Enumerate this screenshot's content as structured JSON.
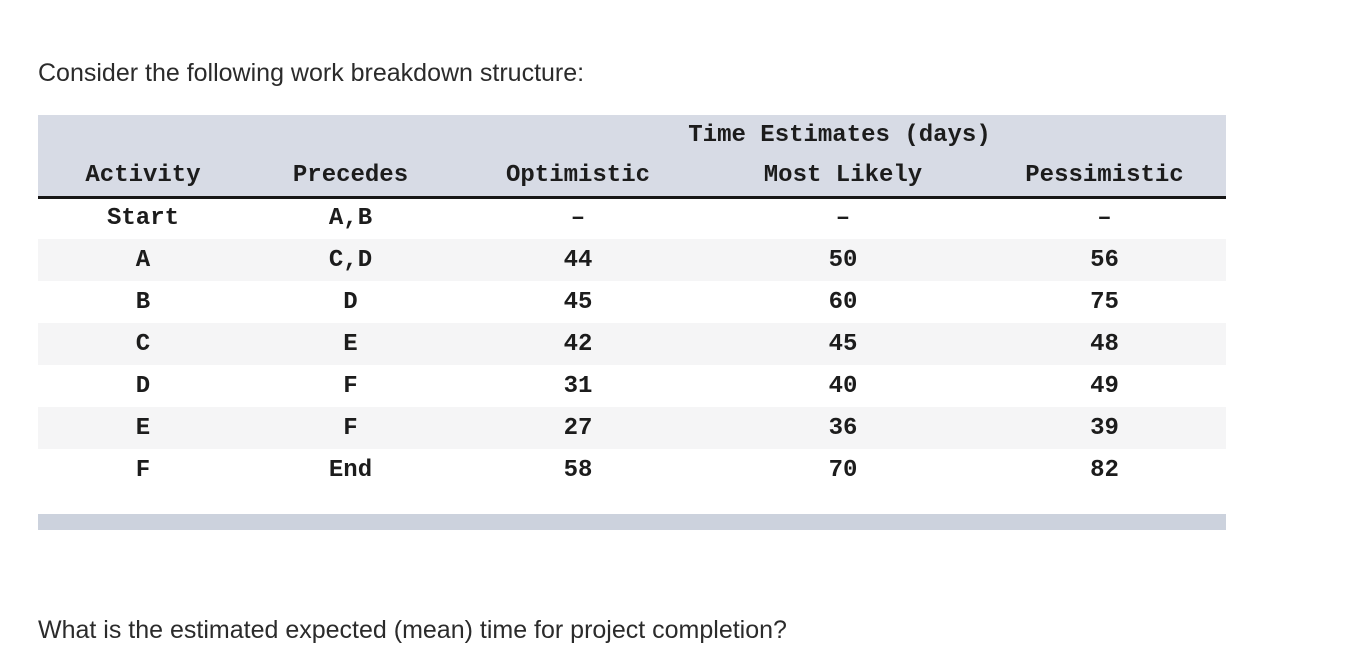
{
  "page": {
    "intro_text": "Consider the following work breakdown structure:",
    "question_text": "What is the estimated expected (mean) time for project completion?"
  },
  "table": {
    "group_header": "Time Estimates (days)",
    "columns": [
      "Activity",
      "Precedes",
      "Optimistic",
      "Most Likely",
      "Pessimistic"
    ],
    "rows": [
      [
        "Start",
        "A,B",
        "–",
        "–",
        "–"
      ],
      [
        "A",
        "C,D",
        "44",
        "50",
        "56"
      ],
      [
        "B",
        "D",
        "45",
        "60",
        "75"
      ],
      [
        "C",
        "E",
        "42",
        "45",
        "48"
      ],
      [
        "D",
        "F",
        "31",
        "40",
        "49"
      ],
      [
        "E",
        "F",
        "27",
        "36",
        "39"
      ],
      [
        "F",
        "End",
        "58",
        "70",
        "82"
      ]
    ],
    "colors": {
      "header_bg": "#d7dbe5",
      "row_alt_bg": "#f5f5f6",
      "scroll_track": "#ccd2dd",
      "header_rule": "#161616",
      "text": "#1c1c1c"
    }
  }
}
